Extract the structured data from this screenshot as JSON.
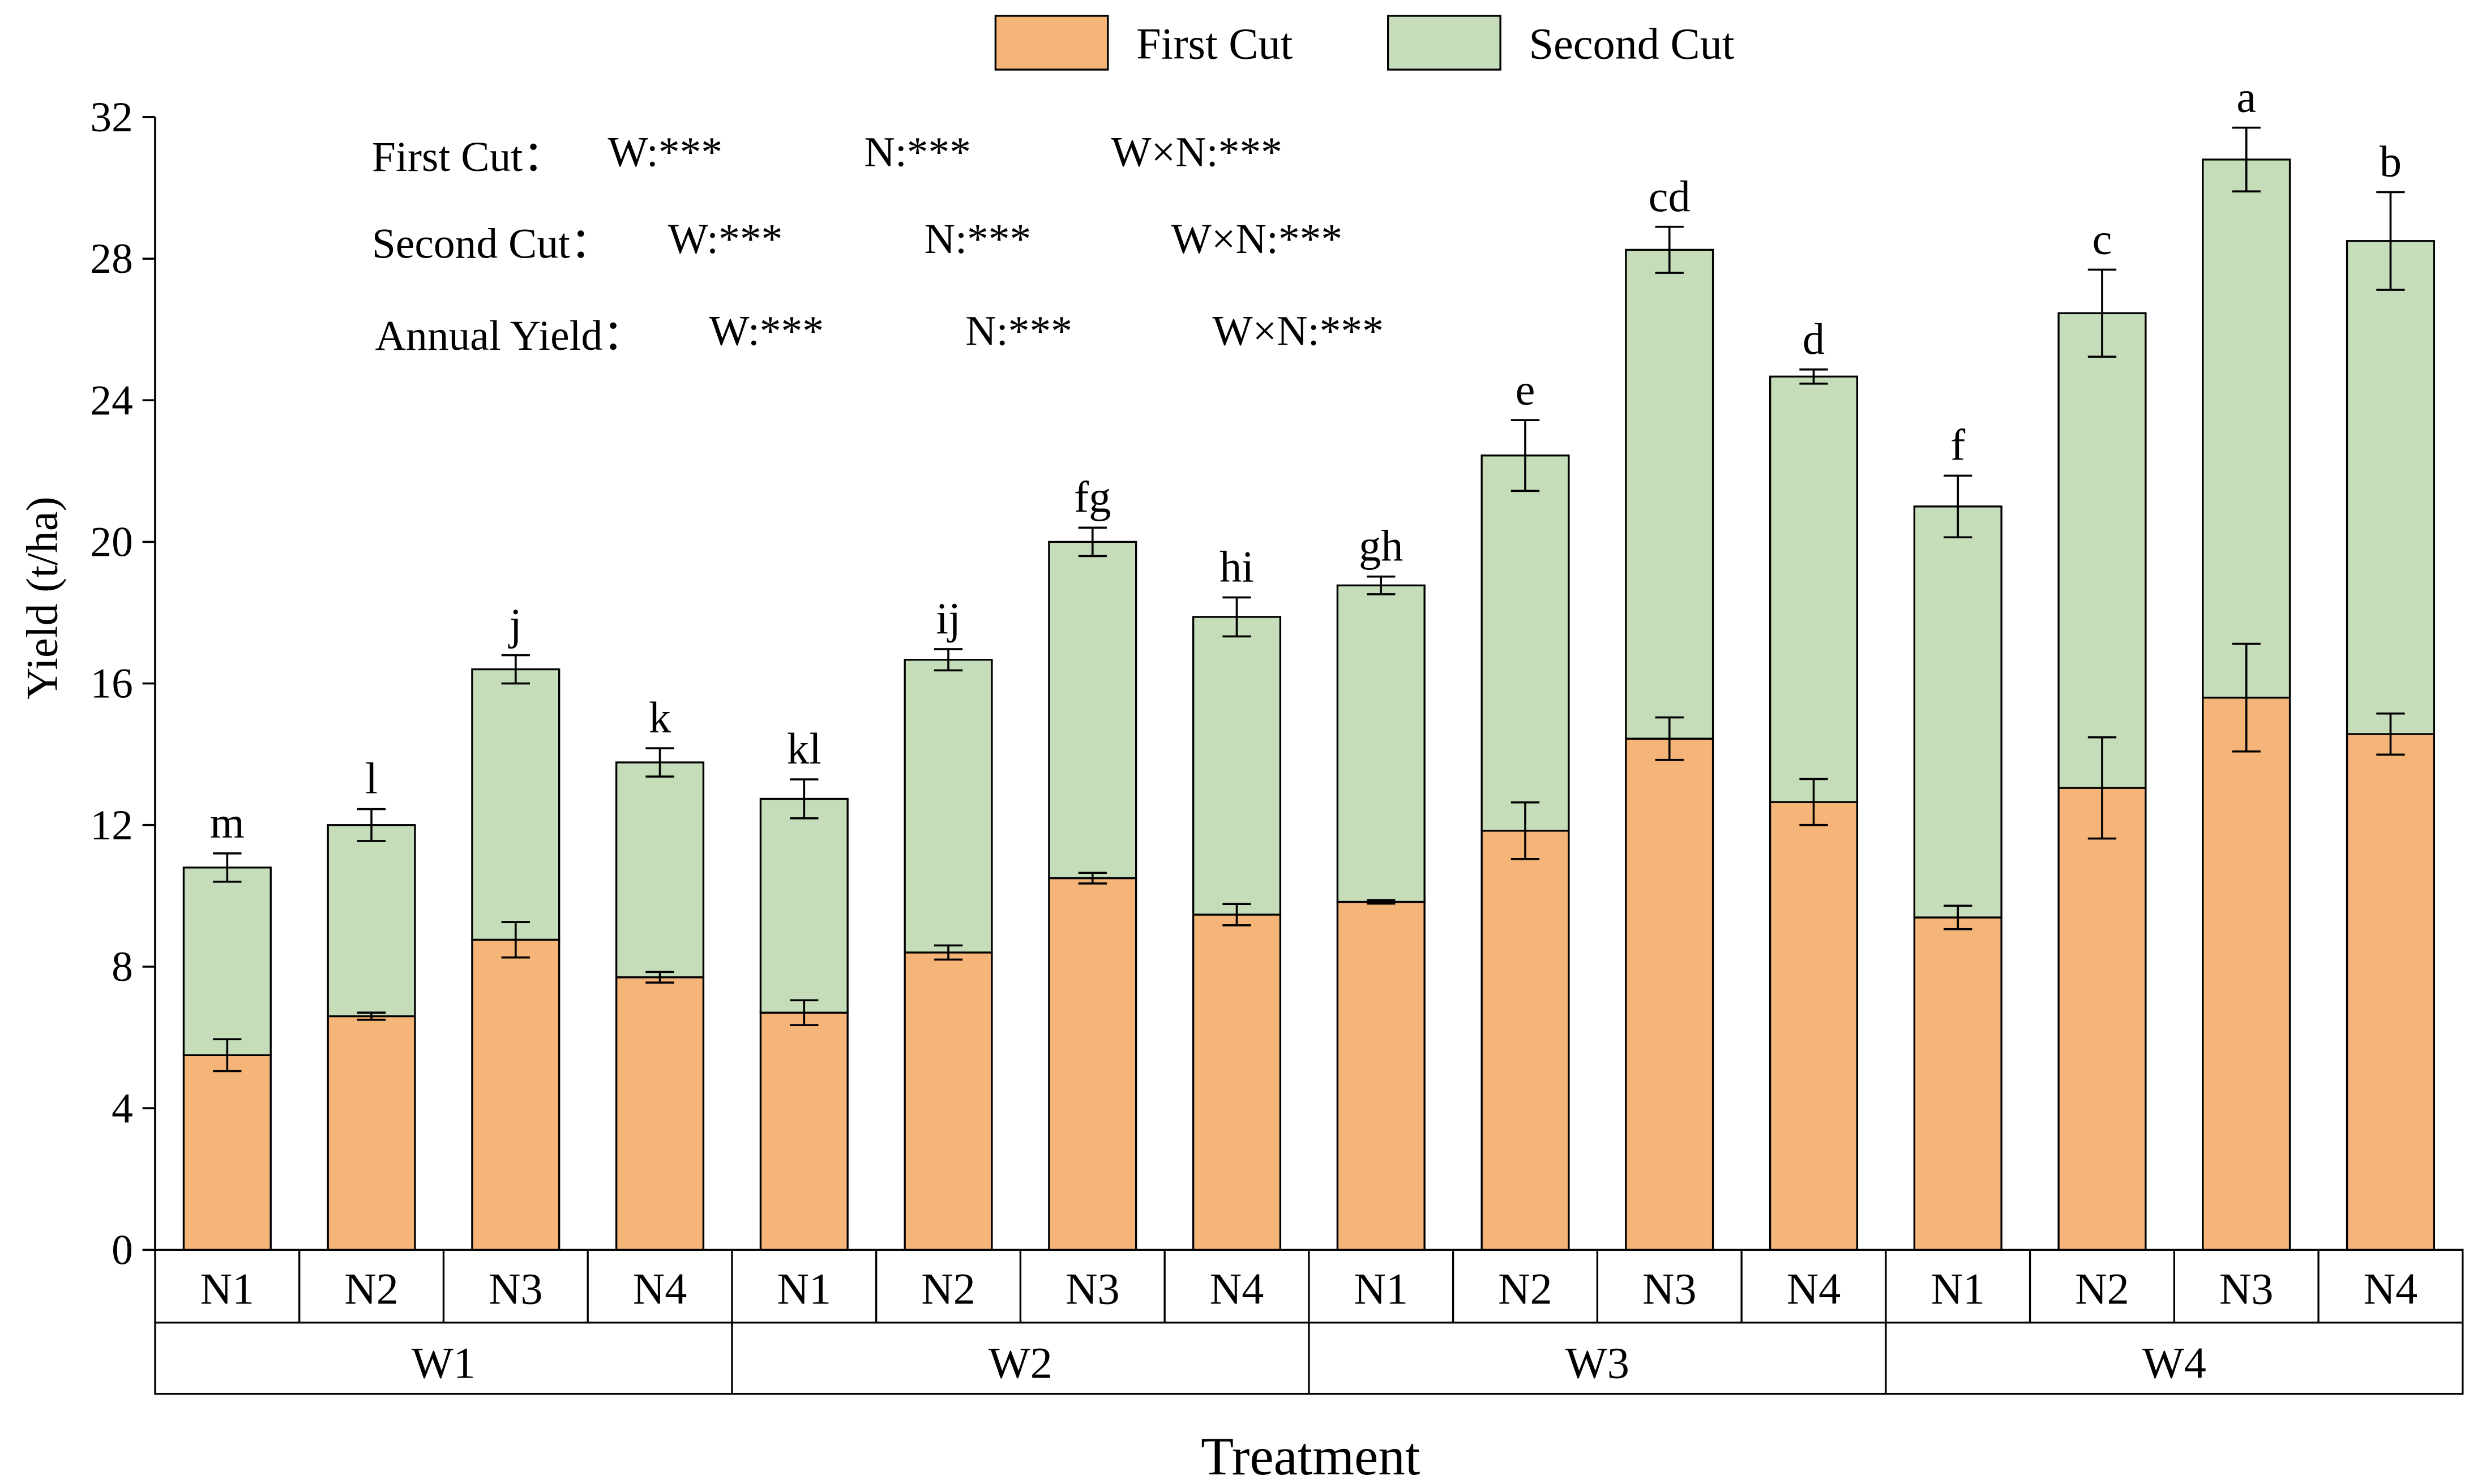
{
  "chart_data": {
    "type": "bar",
    "stacked": true,
    "ylabel": "Yield (t/ha)",
    "xlabel": "Treatment",
    "ylim": [
      0,
      32
    ],
    "yticks": [
      "0",
      "4",
      "8",
      "12",
      "16",
      "20",
      "24",
      "28",
      "32"
    ],
    "ytick_values": [
      0,
      4,
      8,
      12,
      16,
      20,
      24,
      28,
      32
    ],
    "legend_placement": "top-center",
    "categories": [
      "N1",
      "N2",
      "N3",
      "N4",
      "N1",
      "N2",
      "N3",
      "N4",
      "N1",
      "N2",
      "N3",
      "N4",
      "N1",
      "N2",
      "N3",
      "N4"
    ],
    "groups": [
      "W1",
      "W2",
      "W3",
      "W4"
    ],
    "series": [
      {
        "name": "First Cut",
        "color": "#F5B478",
        "values": [
          5.5,
          6.6,
          8.76,
          7.7,
          6.7,
          8.4,
          10.5,
          9.47,
          9.83,
          11.84,
          14.44,
          12.65,
          9.39,
          13.05,
          15.6,
          14.57
        ],
        "errors": [
          0.45,
          0.1,
          0.5,
          0.15,
          0.35,
          0.2,
          0.15,
          0.3,
          0.05,
          0.8,
          0.6,
          0.65,
          0.33,
          1.43,
          1.52,
          0.58
        ]
      },
      {
        "name": "Second Cut",
        "color": "#C5DDB8",
        "values": [
          5.3,
          5.4,
          7.64,
          6.07,
          6.04,
          8.27,
          9.5,
          8.41,
          8.94,
          10.6,
          13.81,
          12.02,
          11.61,
          13.41,
          15.2,
          13.93
        ],
        "total_errors": [
          0.4,
          0.45,
          0.4,
          0.4,
          0.55,
          0.3,
          0.4,
          0.55,
          0.25,
          1.0,
          0.65,
          0.2,
          0.87,
          1.23,
          0.9,
          1.38
        ]
      }
    ],
    "significance_letters": [
      "m",
      "l",
      "j",
      "k",
      "kl",
      "ij",
      "fg",
      "hi",
      "gh",
      "e",
      "cd",
      "d",
      "f",
      "c",
      "a",
      "b"
    ],
    "annotations": [
      {
        "label": "First Cut：",
        "w": "W:***",
        "n": "N:***",
        "wn": "W×N:***"
      },
      {
        "label": "Second Cut：",
        "w": "W:***",
        "n": "N:***",
        "wn": "W×N:***"
      },
      {
        "label": "Annual Yield：",
        "w": "W:***",
        "n": "N:***",
        "wn": "W×N:***"
      }
    ]
  }
}
